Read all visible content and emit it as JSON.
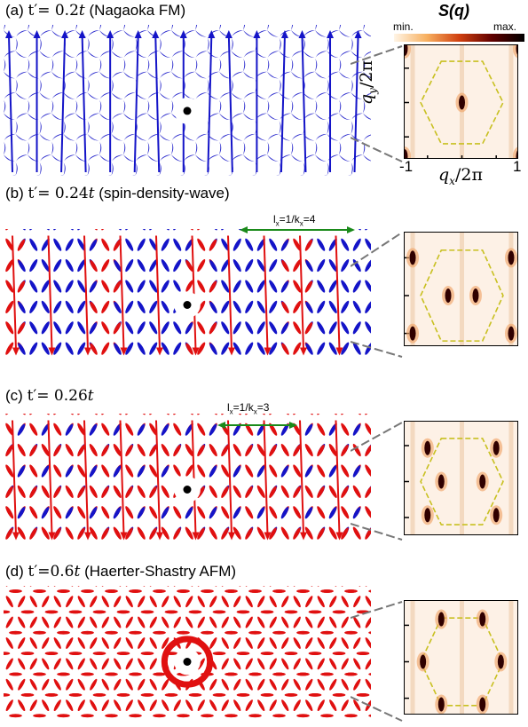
{
  "panels": [
    {
      "label": "(a)",
      "tprime": "t′= 0.2",
      "tunit": "t",
      "name": "(Nagaoka FM)",
      "type": "fm"
    },
    {
      "label": "(b)",
      "tprime": "t′= 0.24",
      "tunit": "t",
      "name": "(spin-density-wave)",
      "type": "sdw4",
      "period_label": "l",
      "period_sub": "x",
      "period_rest": "=1/k",
      "period_sub2": "x",
      "period_val": "=4"
    },
    {
      "label": "(c)",
      "tprime": "t′= 0.26",
      "tunit": "t",
      "name": "",
      "type": "sdw3",
      "period_label": "l",
      "period_sub": "x",
      "period_rest": "=1/k",
      "period_sub2": "x",
      "period_val": "=3"
    },
    {
      "label": "(d)",
      "tprime": "t′=0.6",
      "tunit": "t",
      "name": "(Haerter-Shastry AFM)",
      "type": "afm"
    }
  ],
  "structure_factor": {
    "title": "S(q)",
    "min_label": "min.",
    "max_label": "max.",
    "ylabel": "q",
    "ylabel_sub": "y",
    "ylabel_rest": "/2π",
    "xlabel": "q",
    "xlabel_sub": "x",
    "xlabel_rest": "/2π",
    "xtick_left": "-1",
    "xtick_right": "1"
  },
  "colors": {
    "spin_up": "#1414c8",
    "spin_down": "#e01010",
    "bz_dash": "#c8c020",
    "sf_bg": "#fdf1e6",
    "arrow_green": "#1a8a1a"
  }
}
